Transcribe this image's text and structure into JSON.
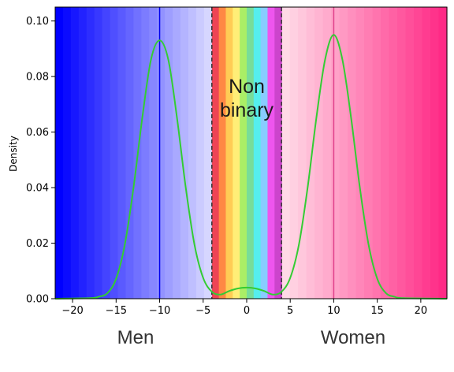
{
  "chart_data": {
    "type": "area",
    "title": "",
    "xlabel": "",
    "ylabel": "Density",
    "xlim": [
      -22,
      23
    ],
    "ylim": [
      0,
      0.105
    ],
    "xticks": [
      -20,
      -15,
      -10,
      -5,
      0,
      5,
      10,
      15,
      20
    ],
    "yticks": [
      0.0,
      0.02,
      0.04,
      0.06,
      0.08,
      0.1
    ],
    "ytick_labels": [
      "0.00",
      "0.02",
      "0.04",
      "0.06",
      "0.08",
      "0.10"
    ],
    "grid": false,
    "series": [
      {
        "color": "#33cc33",
        "x": [
          -22,
          -18,
          -17,
          -16,
          -15,
          -14,
          -13,
          -12,
          -11,
          -10,
          -9,
          -8,
          -7,
          -6,
          -5,
          -4,
          -3,
          -2,
          -1,
          0,
          1,
          2,
          3,
          4,
          5,
          6,
          7,
          8,
          9,
          10,
          11,
          12,
          13,
          14,
          15,
          16,
          17,
          18,
          23
        ],
        "y": [
          0.0,
          0.0002,
          0.0007,
          0.002,
          0.0072,
          0.0195,
          0.04,
          0.065,
          0.086,
          0.093,
          0.086,
          0.065,
          0.04,
          0.0195,
          0.0075,
          0.0025,
          0.0015,
          0.0028,
          0.0037,
          0.004,
          0.0037,
          0.0028,
          0.0015,
          0.0025,
          0.0075,
          0.0195,
          0.04,
          0.065,
          0.086,
          0.095,
          0.086,
          0.065,
          0.04,
          0.0195,
          0.0072,
          0.002,
          0.0007,
          0.0002,
          0.0
        ]
      }
    ],
    "vertical_lines": [
      {
        "x": -10,
        "color": "#0000ee",
        "style": "solid"
      },
      {
        "x": 10,
        "color": "#e0408a",
        "style": "solid"
      },
      {
        "x": -4,
        "color": "#333333",
        "style": "dashed"
      },
      {
        "x": 4,
        "color": "#333333",
        "style": "dashed"
      }
    ],
    "annotations": {
      "center_line1": "Non",
      "center_line2": "binary",
      "left_label": "Men",
      "right_label": "Women"
    },
    "regions": {
      "left": {
        "from": -22,
        "to": -4,
        "color_start": "#0000ff",
        "color_end": "#d6d6ff"
      },
      "right": {
        "from": 4,
        "to": 23,
        "color_start": "#ffd9e6",
        "color_end": "#ff2a86"
      },
      "center": {
        "from": -4,
        "to": 4,
        "colors": [
          "#ee4455",
          "#ff8844",
          "#ffcc55",
          "#ffee77",
          "#aaee66",
          "#77dd99",
          "#55eeee",
          "#88ccff",
          "#ee55ee",
          "#cc44cc"
        ]
      }
    },
    "colors": {
      "axis": "#000000",
      "curve": "#33cc33"
    }
  }
}
